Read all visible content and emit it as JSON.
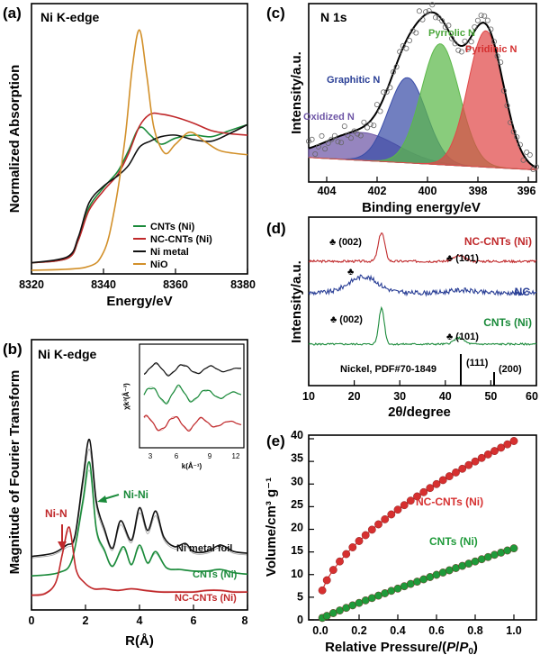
{
  "chart_data": [
    {
      "panel": "(a)",
      "type": "line",
      "title": "Ni K-edge",
      "xlabel": "Energy/eV",
      "ylabel": "Normalized Absorption",
      "xlim": [
        8320,
        8380
      ],
      "xticks": [
        "8320",
        "8340",
        "8360",
        "8380"
      ],
      "legend_position": "bottom-right",
      "series": [
        {
          "name": "CNTs (Ni)",
          "color": "#1a8a3a",
          "x": [
            8320,
            8330,
            8333,
            8336,
            8340,
            8344,
            8347,
            8350,
            8353,
            8356,
            8360,
            8365,
            8370,
            8375,
            8380
          ],
          "y": [
            0.05,
            0.08,
            0.2,
            0.42,
            0.55,
            0.66,
            0.8,
            0.95,
            0.9,
            0.84,
            0.88,
            0.9,
            0.89,
            0.93,
            0.97
          ]
        },
        {
          "name": "NC-CNTs (Ni)",
          "color": "#c0292b",
          "x": [
            8320,
            8330,
            8333,
            8336,
            8340,
            8344,
            8347,
            8350,
            8353,
            8356,
            8360,
            8365,
            8370,
            8375,
            8380
          ],
          "y": [
            0.05,
            0.08,
            0.2,
            0.4,
            0.53,
            0.64,
            0.78,
            0.96,
            1.04,
            1.04,
            1.02,
            0.98,
            0.93,
            0.91,
            0.9
          ]
        },
        {
          "name": "Ni metal",
          "color": "#111111",
          "x": [
            8320,
            8330,
            8333,
            8336,
            8340,
            8344,
            8347,
            8350,
            8353,
            8356,
            8360,
            8365,
            8370,
            8375,
            8380
          ],
          "y": [
            0.05,
            0.09,
            0.22,
            0.45,
            0.56,
            0.63,
            0.7,
            0.82,
            0.86,
            0.89,
            0.9,
            0.87,
            0.86,
            0.91,
            0.97
          ]
        },
        {
          "name": "NiO",
          "color": "#d2902a",
          "x": [
            8320,
            8335,
            8340,
            8343,
            8346,
            8348,
            8350,
            8352,
            8354,
            8357,
            8360,
            8364,
            8368,
            8372,
            8376,
            8380
          ],
          "y": [
            0.0,
            0.02,
            0.12,
            0.4,
            0.88,
            1.35,
            1.6,
            1.3,
            0.95,
            0.78,
            0.84,
            0.92,
            0.86,
            0.8,
            0.78,
            0.77
          ]
        }
      ]
    },
    {
      "panel": "(b)",
      "type": "line",
      "title": "Ni K-edge",
      "xlabel": "R(Å)",
      "ylabel": "Magnitude of Fourier Transform",
      "xlim": [
        0,
        8
      ],
      "xticks": [
        "0",
        "2",
        "4",
        "6",
        "8"
      ],
      "annotations": [
        "Ni-N",
        "Ni-Ni"
      ],
      "series": [
        {
          "name": "Ni metal foil",
          "color": "#111111",
          "x": [
            0.0,
            0.8,
            1.3,
            1.6,
            1.9,
            2.15,
            2.4,
            2.7,
            3.0,
            3.3,
            3.7,
            4.0,
            4.3,
            4.6,
            4.9,
            5.3,
            5.7,
            6.0,
            6.5,
            7.0,
            7.5,
            8.0
          ],
          "y": [
            0.28,
            0.3,
            0.35,
            0.4,
            0.75,
            1.0,
            0.62,
            0.45,
            0.33,
            0.5,
            0.38,
            0.58,
            0.44,
            0.56,
            0.4,
            0.34,
            0.36,
            0.31,
            0.31,
            0.35,
            0.31,
            0.3
          ]
        },
        {
          "name": "CNTs (Ni)",
          "color": "#1a8a3a",
          "x": [
            0.0,
            1.0,
            1.5,
            1.9,
            2.15,
            2.4,
            2.7,
            3.0,
            3.4,
            3.7,
            4.0,
            4.3,
            4.6,
            5.0,
            5.5,
            6.0,
            6.5,
            7.0,
            7.5,
            8.0
          ],
          "y": [
            0.16,
            0.18,
            0.26,
            0.62,
            0.86,
            0.45,
            0.32,
            0.22,
            0.34,
            0.23,
            0.35,
            0.24,
            0.31,
            0.21,
            0.2,
            0.19,
            0.19,
            0.2,
            0.18,
            0.17
          ]
        },
        {
          "name": "NC-CNTs (Ni)",
          "color": "#c0292b",
          "x": [
            0.0,
            0.5,
            0.9,
            1.15,
            1.4,
            1.65,
            1.95,
            2.3,
            2.7,
            3.2,
            3.7,
            4.2,
            4.8,
            5.5,
            6.0,
            6.5,
            7.0,
            7.5,
            8.0
          ],
          "y": [
            0.04,
            0.05,
            0.12,
            0.3,
            0.46,
            0.2,
            0.12,
            0.08,
            0.08,
            0.07,
            0.08,
            0.07,
            0.06,
            0.06,
            0.06,
            0.07,
            0.07,
            0.06,
            0.06
          ]
        }
      ],
      "inset": {
        "xlabel": "k(Å⁻¹)",
        "ylabel": "χk³(Å⁻³)",
        "xticks": [
          "3",
          "6",
          "9",
          "12"
        ]
      }
    },
    {
      "panel": "(c)",
      "type": "area",
      "title": "N 1s",
      "xlabel": "Binding energy/eV",
      "ylabel": "Intensity/a.u.",
      "xlim": [
        405,
        396
      ],
      "xticks": [
        "404",
        "402",
        "400",
        "398",
        "396"
      ],
      "peaks": [
        {
          "name": "Oxidized N",
          "color": "#6e56a6",
          "center": 402.9,
          "height": 0.18,
          "width": 1.4
        },
        {
          "name": "Graphitic N",
          "color": "#3a4da8",
          "center": 401.1,
          "height": 0.55,
          "width": 0.75
        },
        {
          "name": "Pyrrolic N",
          "color": "#5cb84a",
          "center": 399.8,
          "height": 0.78,
          "width": 0.75
        },
        {
          "name": "Pyridinic N",
          "color": "#e04848",
          "center": 398.0,
          "height": 0.88,
          "width": 0.7
        }
      ],
      "baseline": [
        0.1,
        0.02
      ]
    },
    {
      "panel": "(d)",
      "type": "line",
      "xlabel": "2θ/degree",
      "ylabel": "Intensity/a.u.",
      "xlim": [
        10,
        60
      ],
      "xticks": [
        "10",
        "20",
        "30",
        "40",
        "50",
        "60"
      ],
      "series": [
        {
          "name": "NC-CNTs (Ni)",
          "color": "#c0292b"
        },
        {
          "name": "NC",
          "color": "#2a3f96"
        },
        {
          "name": "CNTs (Ni)",
          "color": "#1a8a3a"
        }
      ],
      "peak_labels": [
        "♣ (002)",
        "♣ (101)",
        "♣",
        "♣ (002)",
        "♣ (101)"
      ],
      "reference": {
        "label": "Nickel, PDF#70-1849",
        "lines": [
          {
            "x": 44.5,
            "label": "(111)"
          },
          {
            "x": 51.8,
            "label": "(200)"
          }
        ]
      }
    },
    {
      "panel": "(e)",
      "type": "scatter",
      "xlabel": "Relative Pressure/(P/P0)",
      "ylabel": "Volume/cm³ g⁻¹",
      "xlim": [
        0,
        1.0
      ],
      "ylim": [
        0,
        40
      ],
      "xticks": [
        "0.0",
        "0.2",
        "0.4",
        "0.6",
        "0.8",
        "1.0"
      ],
      "yticks": [
        "0",
        "5",
        "10",
        "15",
        "20",
        "25",
        "30",
        "35",
        "40"
      ],
      "series": [
        {
          "name": "NC-CNTs (Ni)",
          "color": "#d63030"
        },
        {
          "name": "CNTs (Ni)",
          "color": "#1f9a3a"
        }
      ]
    }
  ],
  "labels": {
    "a_panel": "(a)",
    "a_title": "Ni K-edge",
    "a_ylabel": "Normalized Absorption",
    "a_xlabel": "Energy/eV",
    "a_xt0": "8320",
    "a_xt1": "8340",
    "a_xt2": "8360",
    "a_xt3": "8380",
    "a_leg0": "CNTs (Ni)",
    "a_leg1": "NC-CNTs (Ni)",
    "a_leg2": "Ni metal",
    "a_leg3": "NiO",
    "b_panel": "(b)",
    "b_title": "Ni K-edge",
    "b_ylabel": "Magnitude of Fourier Transform",
    "b_xlabel": "R(Å)",
    "b_xt0": "0",
    "b_xt1": "2",
    "b_xt2": "4",
    "b_xt3": "6",
    "b_xt4": "8",
    "b_ann_nin": "Ni-N",
    "b_ann_nini": "Ni-Ni",
    "b_s0": "Ni metal foil",
    "b_s1": "CNTs (Ni)",
    "b_s2": "NC-CNTs (Ni)",
    "b_inset_x": "k(Å⁻¹)",
    "b_inset_y": "χk³(Å⁻³)",
    "b_ixt0": "3",
    "b_ixt1": "6",
    "b_ixt2": "9",
    "b_ixt3": "12",
    "c_panel": "(c)",
    "c_title": "N 1s",
    "c_ylabel": "Intensity/a.u.",
    "c_xlabel": "Binding energy/eV",
    "c_xt0": "404",
    "c_xt1": "402",
    "c_xt2": "400",
    "c_xt3": "398",
    "c_xt4": "396",
    "c_p0": "Oxidized N",
    "c_p1": "Graphitic N",
    "c_p2": "Pyrrolic N",
    "c_p3": "Pyridinic N",
    "d_panel": "(d)",
    "d_ylabel": "Intensity/a.u.",
    "d_xlabel": "2θ/degree",
    "d_xt0": "10",
    "d_xt1": "20",
    "d_xt2": "30",
    "d_xt3": "40",
    "d_xt4": "50",
    "d_xt5": "60",
    "d_s0": "NC-CNTs (Ni)",
    "d_s1": "NC",
    "d_s2": "CNTs (Ni)",
    "d_pk0": "♣ (002)",
    "d_pk1": "♣ (101)",
    "d_pk2": "♣",
    "d_pk3": "♣ (002)",
    "d_pk4": "♣ (101)",
    "d_ref": "Nickel, PDF#70-1849",
    "d_ref0": "(111)",
    "d_ref1": "(200)",
    "e_panel": "(e)",
    "e_ylabel": "Volume/cm³ g⁻¹",
    "e_xlabel": "Relative Pressure/(P/P0)",
    "e_xt0": "0.0",
    "e_xt1": "0.2",
    "e_xt2": "0.4",
    "e_xt3": "0.6",
    "e_xt4": "0.8",
    "e_xt5": "1.0",
    "e_yt0": "0",
    "e_yt1": "5",
    "e_yt2": "10",
    "e_yt3": "15",
    "e_yt4": "20",
    "e_yt5": "25",
    "e_yt6": "30",
    "e_yt7": "35",
    "e_yt8": "40",
    "e_s0": "NC-CNTs (Ni)",
    "e_s1": "CNTs (Ni)"
  }
}
